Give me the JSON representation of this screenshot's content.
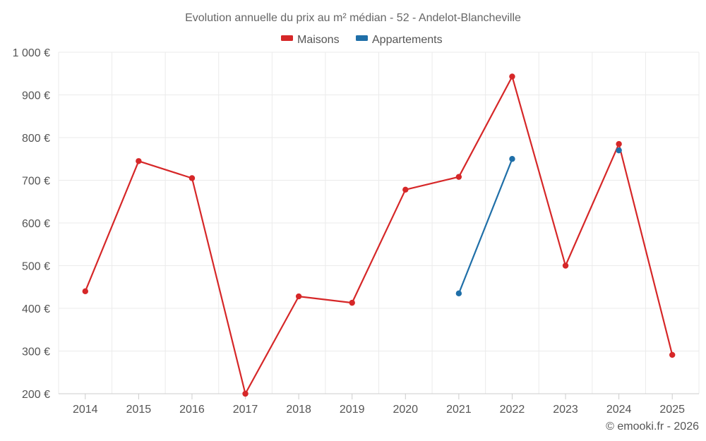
{
  "chart_data": {
    "type": "line",
    "title": "Evolution annuelle du prix au m² médian - 52 - Andelot-Blancheville",
    "categories": [
      "2014",
      "2015",
      "2016",
      "2017",
      "2018",
      "2019",
      "2020",
      "2021",
      "2022",
      "2023",
      "2024",
      "2025"
    ],
    "series": [
      {
        "name": "Maisons",
        "color": "#d62728",
        "values": [
          440,
          745,
          705,
          200,
          428,
          413,
          678,
          708,
          943,
          500,
          785,
          291
        ]
      },
      {
        "name": "Appartements",
        "color": "#1f6fa8",
        "values": [
          null,
          null,
          null,
          null,
          null,
          null,
          null,
          435,
          750,
          null,
          770,
          null
        ]
      }
    ],
    "ylim": [
      200,
      1000
    ],
    "yticks": [
      200,
      300,
      400,
      500,
      600,
      700,
      800,
      900,
      1000
    ],
    "ytick_labels": [
      "200 €",
      "300 €",
      "400 €",
      "500 €",
      "600 €",
      "700 €",
      "800 €",
      "900 €",
      "1 000 €"
    ],
    "xlabel": "",
    "ylabel": "",
    "grid": true,
    "legend_position": "top-center"
  },
  "credit": "© emooki.fr - 2026"
}
